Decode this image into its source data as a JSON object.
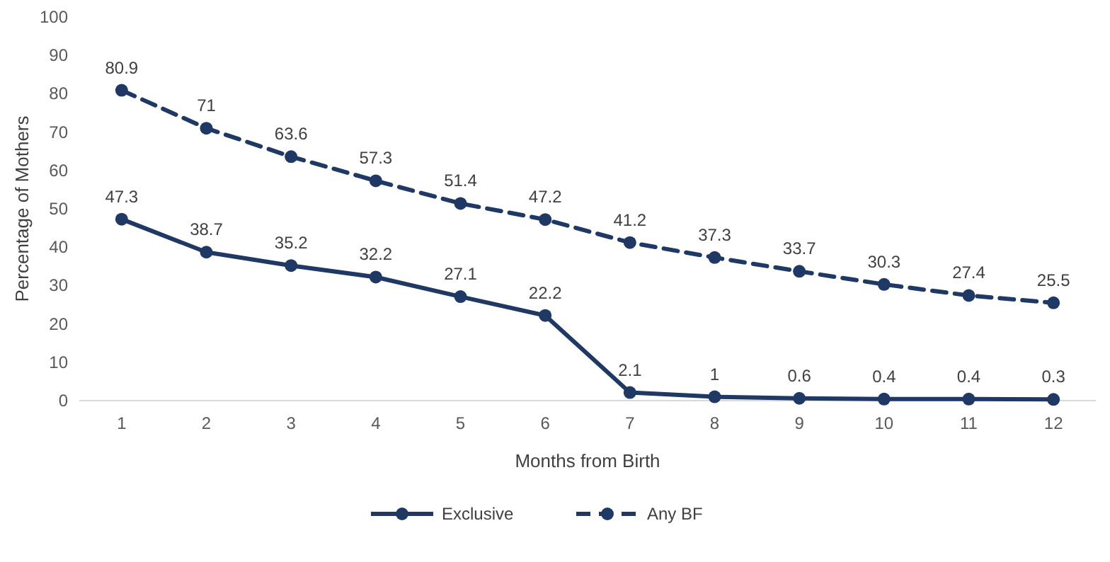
{
  "chart_data": {
    "type": "line",
    "xlabel": "Months from Birth",
    "ylabel": "Percentage of Mothers",
    "x": [
      1,
      2,
      3,
      4,
      5,
      6,
      7,
      8,
      9,
      10,
      11,
      12
    ],
    "xlim": [
      0.5,
      12.5
    ],
    "xticks": [
      1,
      2,
      3,
      4,
      5,
      6,
      7,
      8,
      9,
      10,
      11,
      12
    ],
    "ylim": [
      0,
      100
    ],
    "yticks": [
      0,
      10,
      20,
      30,
      40,
      50,
      60,
      70,
      80,
      90,
      100
    ],
    "grid": false,
    "legend": "bottom",
    "marker": "circle",
    "data_labels": true,
    "series": [
      {
        "name": "Exclusive",
        "color": "#1f3864",
        "line_style": "solid",
        "values": [
          47.3,
          38.7,
          35.2,
          32.2,
          27.1,
          22.2,
          2.1,
          1,
          0.6,
          0.4,
          0.4,
          0.3
        ]
      },
      {
        "name": "Any BF",
        "color": "#1f3864",
        "line_style": "dashed",
        "values": [
          80.9,
          71,
          63.6,
          57.3,
          51.4,
          47.2,
          41.2,
          37.3,
          33.7,
          30.3,
          27.4,
          25.5
        ]
      }
    ]
  }
}
